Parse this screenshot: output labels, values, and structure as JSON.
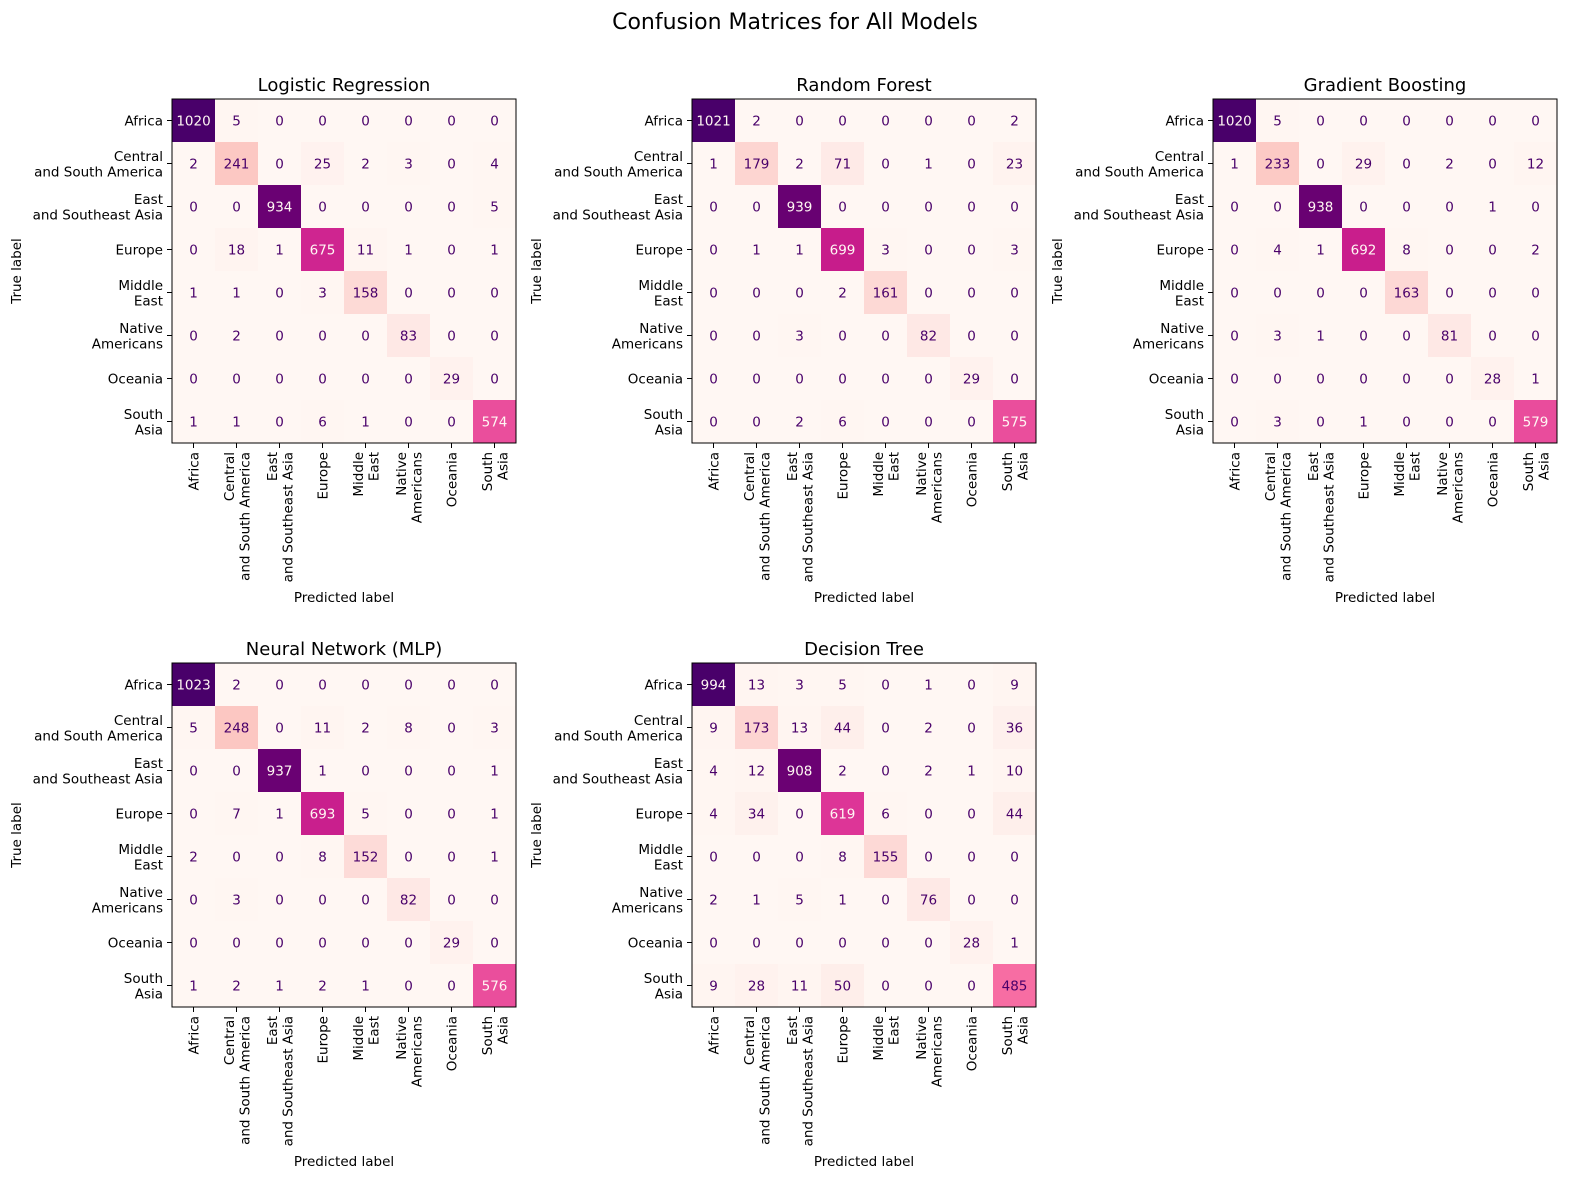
{
  "suptitle": "Confusion Matrices for All Models",
  "chart_data": [
    {
      "type": "heatmap",
      "title": "Logistic Regression",
      "xlabel": "Predicted label",
      "ylabel": "True label",
      "labels": [
        [
          "Africa"
        ],
        [
          "Central",
          "and South America"
        ],
        [
          "East",
          "and Southeast Asia"
        ],
        [
          "Europe"
        ],
        [
          "Middle",
          "East"
        ],
        [
          "Native",
          "Americans"
        ],
        [
          "Oceania"
        ],
        [
          "South",
          "Asia"
        ]
      ],
      "matrix": [
        [
          1020,
          5,
          0,
          0,
          0,
          0,
          0,
          0
        ],
        [
          2,
          241,
          0,
          25,
          2,
          3,
          0,
          4
        ],
        [
          0,
          0,
          934,
          0,
          0,
          0,
          0,
          5
        ],
        [
          0,
          18,
          1,
          675,
          11,
          1,
          0,
          1
        ],
        [
          1,
          1,
          0,
          3,
          158,
          0,
          0,
          0
        ],
        [
          0,
          2,
          0,
          0,
          0,
          83,
          0,
          0
        ],
        [
          0,
          0,
          0,
          0,
          0,
          0,
          29,
          0
        ],
        [
          1,
          1,
          0,
          6,
          1,
          0,
          0,
          574
        ]
      ],
      "colormap": "RdPu"
    },
    {
      "type": "heatmap",
      "title": "Random Forest",
      "xlabel": "Predicted label",
      "ylabel": "True label",
      "labels": [
        [
          "Africa"
        ],
        [
          "Central",
          "and South America"
        ],
        [
          "East",
          "and Southeast Asia"
        ],
        [
          "Europe"
        ],
        [
          "Middle",
          "East"
        ],
        [
          "Native",
          "Americans"
        ],
        [
          "Oceania"
        ],
        [
          "South",
          "Asia"
        ]
      ],
      "matrix": [
        [
          1021,
          2,
          0,
          0,
          0,
          0,
          0,
          2
        ],
        [
          1,
          179,
          2,
          71,
          0,
          1,
          0,
          23
        ],
        [
          0,
          0,
          939,
          0,
          0,
          0,
          0,
          0
        ],
        [
          0,
          1,
          1,
          699,
          3,
          0,
          0,
          3
        ],
        [
          0,
          0,
          0,
          2,
          161,
          0,
          0,
          0
        ],
        [
          0,
          0,
          3,
          0,
          0,
          82,
          0,
          0
        ],
        [
          0,
          0,
          0,
          0,
          0,
          0,
          29,
          0
        ],
        [
          0,
          0,
          2,
          6,
          0,
          0,
          0,
          575
        ]
      ],
      "colormap": "RdPu"
    },
    {
      "type": "heatmap",
      "title": "Gradient Boosting",
      "xlabel": "Predicted label",
      "ylabel": "True label",
      "labels": [
        [
          "Africa"
        ],
        [
          "Central",
          "and South America"
        ],
        [
          "East",
          "and Southeast Asia"
        ],
        [
          "Europe"
        ],
        [
          "Middle",
          "East"
        ],
        [
          "Native",
          "Americans"
        ],
        [
          "Oceania"
        ],
        [
          "South",
          "Asia"
        ]
      ],
      "matrix": [
        [
          1020,
          5,
          0,
          0,
          0,
          0,
          0,
          0
        ],
        [
          1,
          233,
          0,
          29,
          0,
          2,
          0,
          12
        ],
        [
          0,
          0,
          938,
          0,
          0,
          0,
          1,
          0
        ],
        [
          0,
          4,
          1,
          692,
          8,
          0,
          0,
          2
        ],
        [
          0,
          0,
          0,
          0,
          163,
          0,
          0,
          0
        ],
        [
          0,
          3,
          1,
          0,
          0,
          81,
          0,
          0
        ],
        [
          0,
          0,
          0,
          0,
          0,
          0,
          28,
          1
        ],
        [
          0,
          3,
          0,
          1,
          0,
          0,
          0,
          579
        ]
      ],
      "colormap": "RdPu"
    },
    {
      "type": "heatmap",
      "title": "Neural Network (MLP)",
      "xlabel": "Predicted label",
      "ylabel": "True label",
      "labels": [
        [
          "Africa"
        ],
        [
          "Central",
          "and South America"
        ],
        [
          "East",
          "and Southeast Asia"
        ],
        [
          "Europe"
        ],
        [
          "Middle",
          "East"
        ],
        [
          "Native",
          "Americans"
        ],
        [
          "Oceania"
        ],
        [
          "South",
          "Asia"
        ]
      ],
      "matrix": [
        [
          1023,
          2,
          0,
          0,
          0,
          0,
          0,
          0
        ],
        [
          5,
          248,
          0,
          11,
          2,
          8,
          0,
          3
        ],
        [
          0,
          0,
          937,
          1,
          0,
          0,
          0,
          1
        ],
        [
          0,
          7,
          1,
          693,
          5,
          0,
          0,
          1
        ],
        [
          2,
          0,
          0,
          8,
          152,
          0,
          0,
          1
        ],
        [
          0,
          3,
          0,
          0,
          0,
          82,
          0,
          0
        ],
        [
          0,
          0,
          0,
          0,
          0,
          0,
          29,
          0
        ],
        [
          1,
          2,
          1,
          2,
          1,
          0,
          0,
          576
        ]
      ],
      "colormap": "RdPu"
    },
    {
      "type": "heatmap",
      "title": "Decision Tree",
      "xlabel": "Predicted label",
      "ylabel": "True label",
      "labels": [
        [
          "Africa"
        ],
        [
          "Central",
          "and South America"
        ],
        [
          "East",
          "and Southeast Asia"
        ],
        [
          "Europe"
        ],
        [
          "Middle",
          "East"
        ],
        [
          "Native",
          "Americans"
        ],
        [
          "Oceania"
        ],
        [
          "South",
          "Asia"
        ]
      ],
      "matrix": [
        [
          994,
          13,
          3,
          5,
          0,
          1,
          0,
          9
        ],
        [
          9,
          173,
          13,
          44,
          0,
          2,
          0,
          36
        ],
        [
          4,
          12,
          908,
          2,
          0,
          2,
          1,
          10
        ],
        [
          4,
          34,
          0,
          619,
          6,
          0,
          0,
          44
        ],
        [
          0,
          0,
          0,
          8,
          155,
          0,
          0,
          0
        ],
        [
          2,
          1,
          5,
          1,
          0,
          76,
          0,
          0
        ],
        [
          0,
          0,
          0,
          0,
          0,
          0,
          28,
          1
        ],
        [
          9,
          28,
          11,
          50,
          0,
          0,
          0,
          485
        ]
      ],
      "colormap": "RdPu"
    }
  ]
}
